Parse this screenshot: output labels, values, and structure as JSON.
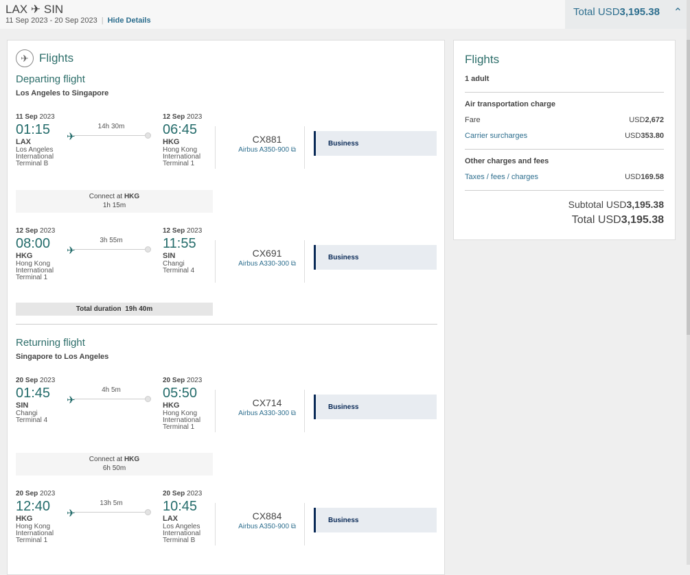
{
  "header": {
    "origin": "LAX",
    "destination": "SIN",
    "dates": "11 Sep 2023 - 20 Sep 2023",
    "hide_details": "Hide Details",
    "total_label": "Total USD",
    "total_amount": "3,195.38"
  },
  "left": {
    "title": "Flights",
    "departing": {
      "heading": "Departing flight",
      "subheading": "Los Angeles to Singapore",
      "segments": [
        {
          "dep_day": "11 Sep",
          "dep_year": "2023",
          "dep_time": "01:15",
          "dep_code": "LAX",
          "dep_city": "Los Angeles",
          "dep_airport": "International",
          "dep_terminal": "Terminal B",
          "duration": "14h 30m",
          "arr_day": "12 Sep",
          "arr_year": "2023",
          "arr_time": "06:45",
          "arr_code": "HKG",
          "arr_city": "Hong Kong",
          "arr_airport": "International",
          "arr_terminal": "Terminal 1",
          "flight": "CX881",
          "aircraft": "Airbus A350-900",
          "cabin": "Business"
        },
        {
          "dep_day": "12 Sep",
          "dep_year": "2023",
          "dep_time": "08:00",
          "dep_code": "HKG",
          "dep_city": "Hong Kong",
          "dep_airport": "International",
          "dep_terminal": "Terminal 1",
          "duration": "3h 55m",
          "arr_day": "12 Sep",
          "arr_year": "2023",
          "arr_time": "11:55",
          "arr_code": "SIN",
          "arr_city": "Changi",
          "arr_airport": "Terminal 4",
          "arr_terminal": "",
          "flight": "CX691",
          "aircraft": "Airbus A330-300",
          "cabin": "Business"
        }
      ],
      "connect": {
        "label": "Connect at",
        "code": "HKG",
        "time": "1h 15m"
      },
      "total": {
        "label": "Total duration",
        "value": "19h 40m"
      }
    },
    "returning": {
      "heading": "Returning flight",
      "subheading": "Singapore to Los Angeles",
      "segments": [
        {
          "dep_day": "20 Sep",
          "dep_year": "2023",
          "dep_time": "01:45",
          "dep_code": "SIN",
          "dep_city": "Changi",
          "dep_airport": "Terminal 4",
          "dep_terminal": "",
          "duration": "4h 5m",
          "arr_day": "20 Sep",
          "arr_year": "2023",
          "arr_time": "05:50",
          "arr_code": "HKG",
          "arr_city": "Hong Kong",
          "arr_airport": "International",
          "arr_terminal": "Terminal 1",
          "flight": "CX714",
          "aircraft": "Airbus A330-300",
          "cabin": "Business"
        },
        {
          "dep_day": "20 Sep",
          "dep_year": "2023",
          "dep_time": "12:40",
          "dep_code": "HKG",
          "dep_city": "Hong Kong",
          "dep_airport": "International",
          "dep_terminal": "Terminal 1",
          "duration": "13h 5m",
          "arr_day": "20 Sep",
          "arr_year": "2023",
          "arr_time": "10:45",
          "arr_code": "LAX",
          "arr_city": "Los Angeles",
          "arr_airport": "International",
          "arr_terminal": "Terminal B",
          "flight": "CX884",
          "aircraft": "Airbus A350-900",
          "cabin": "Business"
        }
      ],
      "connect": {
        "label": "Connect at",
        "code": "HKG",
        "time": "6h 50m"
      }
    }
  },
  "summary": {
    "title": "Flights",
    "passengers": "1 adult",
    "air_heading": "Air transportation charge",
    "fare_label": "Fare",
    "fare_cur": "USD",
    "fare_amount": "2,672",
    "surcharge_label": "Carrier surcharges",
    "surcharge_cur": "USD",
    "surcharge_amount": "353.80",
    "other_heading": "Other charges and fees",
    "taxes_label": "Taxes / fees / charges",
    "taxes_cur": "USD",
    "taxes_amount": "169.58",
    "subtotal_label": "Subtotal USD",
    "subtotal_amount": "3,195.38",
    "total_label": "Total USD",
    "total_amount": "3,195.38"
  },
  "colors": {
    "teal": "#236b6a",
    "link": "#2d6e8e",
    "cabin_bar": "#0a2a57"
  }
}
